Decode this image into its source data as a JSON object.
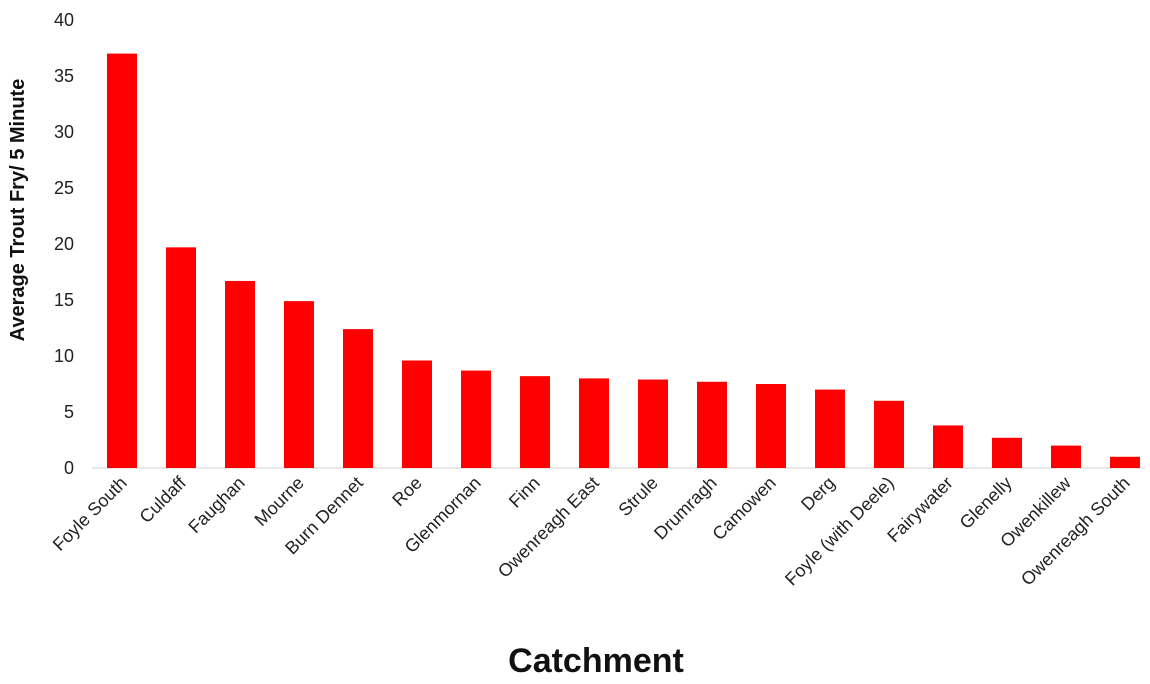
{
  "chart_data": {
    "type": "bar",
    "title": "",
    "xlabel": "Catchment",
    "ylabel": "Average Trout Fry/ 5 Minute",
    "ylim": [
      0,
      40
    ],
    "yticks": [
      0,
      5,
      10,
      15,
      20,
      25,
      30,
      35,
      40
    ],
    "grid": false,
    "legend": "none",
    "color": "#ff0000",
    "categories": [
      "Foyle South",
      "Culdaff",
      "Faughan",
      "Mourne",
      "Burn Dennet",
      "Roe",
      "Glenmornan",
      "Finn",
      "Owenreagh East",
      "Strule",
      "Drumragh",
      "Camowen",
      "Derg",
      "Foyle (with Deele)",
      "Fairywater",
      "Glenelly",
      "Owenkillew",
      "Owenreagh South"
    ],
    "values": [
      37.0,
      19.7,
      16.7,
      14.9,
      12.4,
      9.6,
      8.7,
      8.2,
      8.0,
      7.9,
      7.7,
      7.5,
      7.0,
      6.0,
      3.8,
      2.7,
      2.0,
      1.0
    ]
  }
}
